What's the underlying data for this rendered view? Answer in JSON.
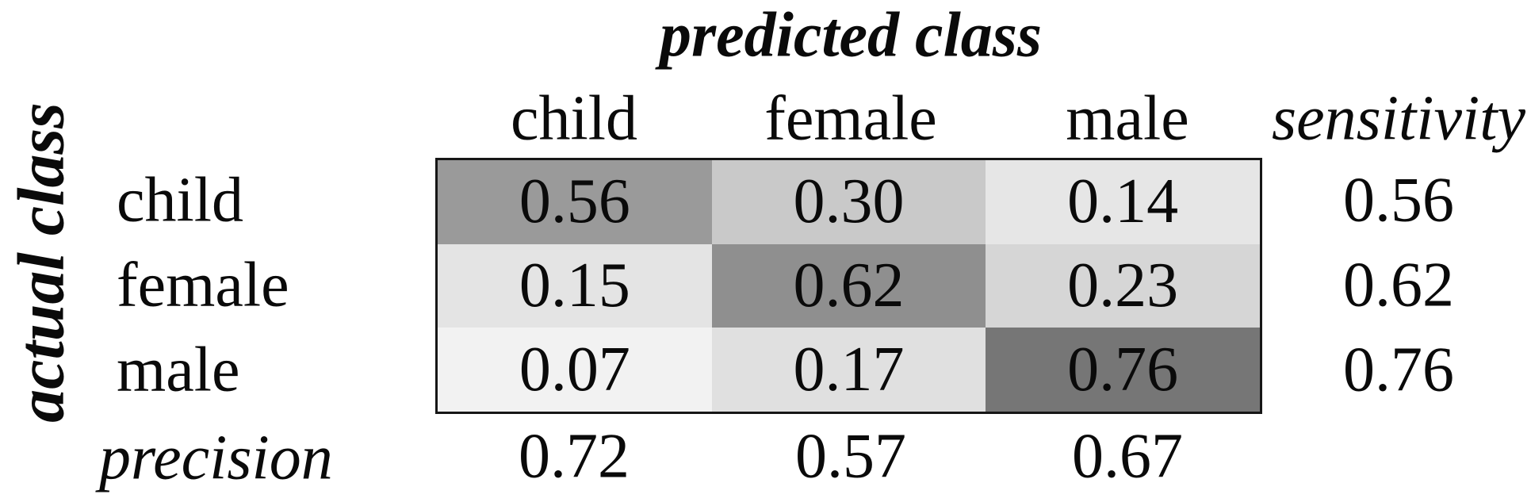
{
  "figure": {
    "title": "predicted class",
    "y_axis_label": "actual class",
    "column_headers": [
      "child",
      "female",
      "male"
    ],
    "sensitivity_header": "sensitivity",
    "row_labels": [
      "child",
      "female",
      "male"
    ],
    "precision_label": "precision"
  },
  "chart_data": {
    "type": "heatmap",
    "title": "predicted class",
    "xlabel": "predicted class",
    "ylabel": "actual class",
    "x_categories": [
      "child",
      "female",
      "male"
    ],
    "y_categories": [
      "child",
      "female",
      "male"
    ],
    "matrix": [
      [
        0.56,
        0.3,
        0.14
      ],
      [
        0.15,
        0.62,
        0.23
      ],
      [
        0.07,
        0.17,
        0.76
      ]
    ],
    "sensitivity": [
      0.56,
      0.62,
      0.76
    ],
    "precision": [
      0.72,
      0.57,
      0.67
    ],
    "value_range": [
      0,
      1
    ],
    "shading_rule": "darker gray means higher value",
    "legend_position": "none",
    "grid": false,
    "cells": [
      [
        {
          "label": "0.56",
          "color": "#9A9A9A"
        },
        {
          "label": "0.30",
          "color": "#C9C9C9"
        },
        {
          "label": "0.14",
          "color": "#E6E6E6"
        }
      ],
      [
        {
          "label": "0.15",
          "color": "#E4E4E4"
        },
        {
          "label": "0.62",
          "color": "#8F8F8F"
        },
        {
          "label": "0.23",
          "color": "#D6D6D6"
        }
      ],
      [
        {
          "label": "0.07",
          "color": "#F2F2F2"
        },
        {
          "label": "0.17",
          "color": "#E0E0E0"
        },
        {
          "label": "0.76",
          "color": "#767676"
        }
      ]
    ],
    "sensitivity_labels": [
      "0.56",
      "0.62",
      "0.76"
    ],
    "precision_labels": [
      "0.72",
      "0.57",
      "0.67"
    ],
    "border_color": "#161616",
    "text_color": "#0a0a0a",
    "background_color": "#ffffff"
  }
}
